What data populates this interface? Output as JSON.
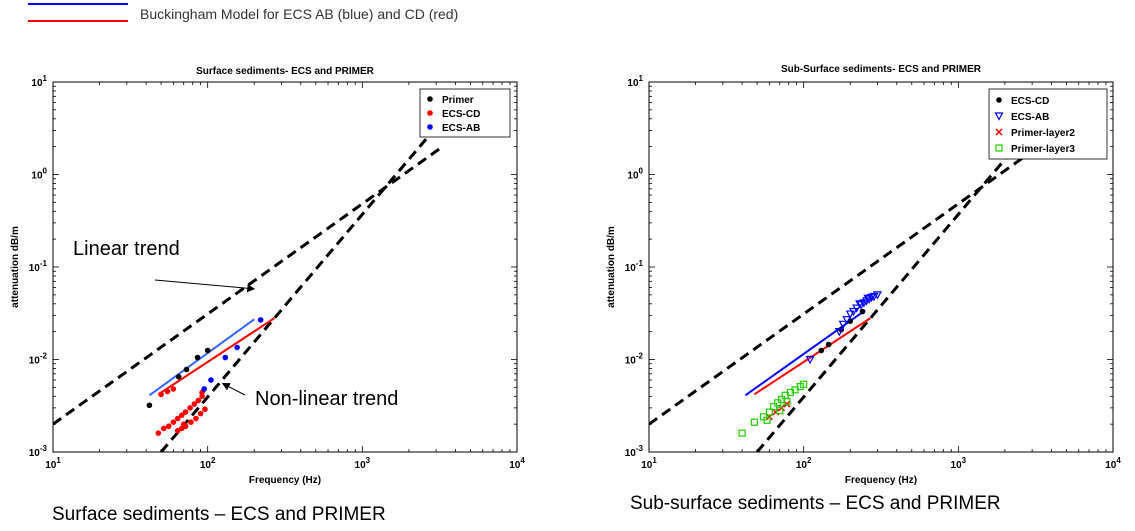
{
  "header": {
    "legend_text": "Buckingham Model for ECS AB (blue) and CD (red)",
    "blue_color": "#0000ff",
    "red_color": "#ff0000"
  },
  "captions": {
    "left": "Surface sediments – ECS and PRIMER",
    "right": "Sub-surface sediments – ECS and PRIMER"
  },
  "chart_data": [
    {
      "type": "scatter",
      "title": "Surface sediments- ECS and PRIMER",
      "xlabel": "Frequency (Hz)",
      "ylabel": "attenuation dB/m",
      "xscale": "log",
      "yscale": "log",
      "xlim": [
        10,
        10000
      ],
      "ylim": [
        0.001,
        10
      ],
      "x_ticks": [
        {
          "value": 10,
          "label": "10^1"
        },
        {
          "value": 100,
          "label": "10^2"
        },
        {
          "value": 1000,
          "label": "10^3"
        },
        {
          "value": 10000,
          "label": "10^4"
        }
      ],
      "y_ticks": [
        {
          "value": 0.001,
          "label": "10^-3"
        },
        {
          "value": 0.01,
          "label": "10^-2"
        },
        {
          "value": 0.1,
          "label": "10^-1"
        },
        {
          "value": 1,
          "label": "10^0"
        },
        {
          "value": 10,
          "label": "10^1"
        }
      ],
      "legend_position": "top-right",
      "series": [
        {
          "name": "Primer",
          "color": "#000000",
          "marker": "dot",
          "points": [
            [
              42,
              0.0032
            ],
            [
              65,
              0.0065
            ],
            [
              73,
              0.0078
            ],
            [
              86,
              0.0105
            ],
            [
              100,
              0.0125
            ]
          ]
        },
        {
          "name": "ECS-CD",
          "color": "#ff0000",
          "marker": "dot",
          "points": [
            [
              48,
              0.0016
            ],
            [
              52,
              0.0018
            ],
            [
              56,
              0.0019
            ],
            [
              60,
              0.0021
            ],
            [
              64,
              0.0023
            ],
            [
              68,
              0.0025
            ],
            [
              72,
              0.0027
            ],
            [
              77,
              0.003
            ],
            [
              82,
              0.0033
            ],
            [
              87,
              0.0036
            ],
            [
              92,
              0.004
            ],
            [
              64,
              0.0017
            ],
            [
              68,
              0.0018
            ],
            [
              72,
              0.0019
            ],
            [
              78,
              0.0021
            ],
            [
              84,
              0.0023
            ],
            [
              90,
              0.0026
            ],
            [
              96,
              0.0029
            ],
            [
              50,
              0.0042
            ],
            [
              55,
              0.0045
            ],
            [
              60,
              0.0048
            ],
            [
              92,
              0.0044
            ],
            [
              70,
              0.002
            ]
          ]
        },
        {
          "name": "ECS-AB",
          "color": "#0000ff",
          "marker": "dot",
          "points": [
            [
              95,
              0.0048
            ],
            [
              105,
              0.006
            ],
            [
              130,
              0.0105
            ],
            [
              155,
              0.0135
            ],
            [
              220,
              0.0268
            ]
          ]
        }
      ],
      "model_lines": [
        {
          "name": "ECS-AB model",
          "color": "#3366ff",
          "points": [
            [
              42,
              0.0041
            ],
            [
              200,
              0.0272
            ]
          ]
        },
        {
          "name": "ECS-CD model",
          "color": "#ff0000",
          "points": [
            [
              48,
              0.0042
            ],
            [
              270,
              0.028
            ]
          ]
        }
      ],
      "trend_lines": [
        {
          "name": "Linear trend",
          "style": "dashed",
          "points": [
            [
              10,
              0.002
            ],
            [
              3300,
              2.0
            ]
          ]
        },
        {
          "name": "Non-linear trend",
          "style": "dashed",
          "points": [
            [
              50,
              0.001
            ],
            [
              5000,
              8.9
            ]
          ]
        }
      ],
      "annotations": [
        {
          "text": "Linear trend",
          "arrow_to": [
            200,
            0.058
          ]
        },
        {
          "text": "Non-linear trend",
          "arrow_to": [
            125,
            0.0055
          ]
        }
      ]
    },
    {
      "type": "scatter",
      "title": "Sub-Surface sediments- ECS and PRIMER",
      "xlabel": "Frequency (Hz)",
      "ylabel": "attenuation dB/m",
      "xscale": "log",
      "yscale": "log",
      "xlim": [
        10,
        10000
      ],
      "ylim": [
        0.001,
        10
      ],
      "x_ticks": [
        {
          "value": 10,
          "label": "10^1"
        },
        {
          "value": 100,
          "label": "10^2"
        },
        {
          "value": 1000,
          "label": "10^3"
        },
        {
          "value": 10000,
          "label": "10^4"
        }
      ],
      "y_ticks": [
        {
          "value": 0.001,
          "label": "10^-3"
        },
        {
          "value": 0.01,
          "label": "10^-2"
        },
        {
          "value": 0.1,
          "label": "10^-1"
        },
        {
          "value": 1,
          "label": "10^0"
        },
        {
          "value": 10,
          "label": "10^1"
        }
      ],
      "legend_position": "top-right",
      "series": [
        {
          "name": "ECS-CD",
          "color": "#000000",
          "marker": "dot",
          "points": [
            [
              130,
              0.0125
            ],
            [
              145,
              0.0145
            ],
            [
              175,
              0.021
            ],
            [
              200,
              0.026
            ],
            [
              240,
              0.033
            ]
          ]
        },
        {
          "name": "ECS-AB",
          "color": "#0000ff",
          "marker": "triangle-down",
          "points": [
            [
              110,
              0.01
            ],
            [
              170,
              0.02
            ],
            [
              180,
              0.024
            ],
            [
              190,
              0.027
            ],
            [
              200,
              0.031
            ],
            [
              210,
              0.033
            ],
            [
              220,
              0.036
            ],
            [
              235,
              0.039
            ],
            [
              245,
              0.041
            ],
            [
              255,
              0.043
            ],
            [
              265,
              0.045
            ],
            [
              275,
              0.047
            ],
            [
              285,
              0.048
            ],
            [
              300,
              0.05
            ],
            [
              230,
              0.04
            ],
            [
              260,
              0.046
            ]
          ]
        },
        {
          "name": "Primer-layer2",
          "color": "#ff0000",
          "marker": "x",
          "points": [
            [
              60,
              0.0024
            ],
            [
              66,
              0.0027
            ],
            [
              72,
              0.003
            ],
            [
              78,
              0.0033
            ]
          ]
        },
        {
          "name": "Primer-layer3",
          "color": "#22cc00",
          "marker": "square",
          "points": [
            [
              40,
              0.0016
            ],
            [
              48,
              0.0021
            ],
            [
              55,
              0.0024
            ],
            [
              60,
              0.0027
            ],
            [
              64,
              0.0031
            ],
            [
              68,
              0.0034
            ],
            [
              72,
              0.0037
            ],
            [
              76,
              0.0041
            ],
            [
              82,
              0.0044
            ],
            [
              88,
              0.0047
            ],
            [
              95,
              0.0051
            ],
            [
              100,
              0.0054
            ],
            [
              58,
              0.0022
            ],
            [
              70,
              0.0028
            ],
            [
              78,
              0.0035
            ]
          ]
        }
      ],
      "model_lines": [
        {
          "name": "ECS-AB model",
          "color": "#0000ff",
          "points": [
            [
              42,
              0.0041
            ],
            [
              250,
              0.034
            ]
          ]
        },
        {
          "name": "ECS-CD model",
          "color": "#ff0000",
          "points": [
            [
              48,
              0.0042
            ],
            [
              270,
              0.028
            ]
          ]
        }
      ],
      "trend_lines": [
        {
          "name": "linear",
          "style": "dashed",
          "points": [
            [
              10,
              0.002
            ],
            [
              3300,
              2.0
            ]
          ]
        },
        {
          "name": "non-linear",
          "style": "dashed",
          "points": [
            [
              50,
              0.001
            ],
            [
              5000,
              8.9
            ]
          ]
        }
      ],
      "annotations": []
    }
  ]
}
